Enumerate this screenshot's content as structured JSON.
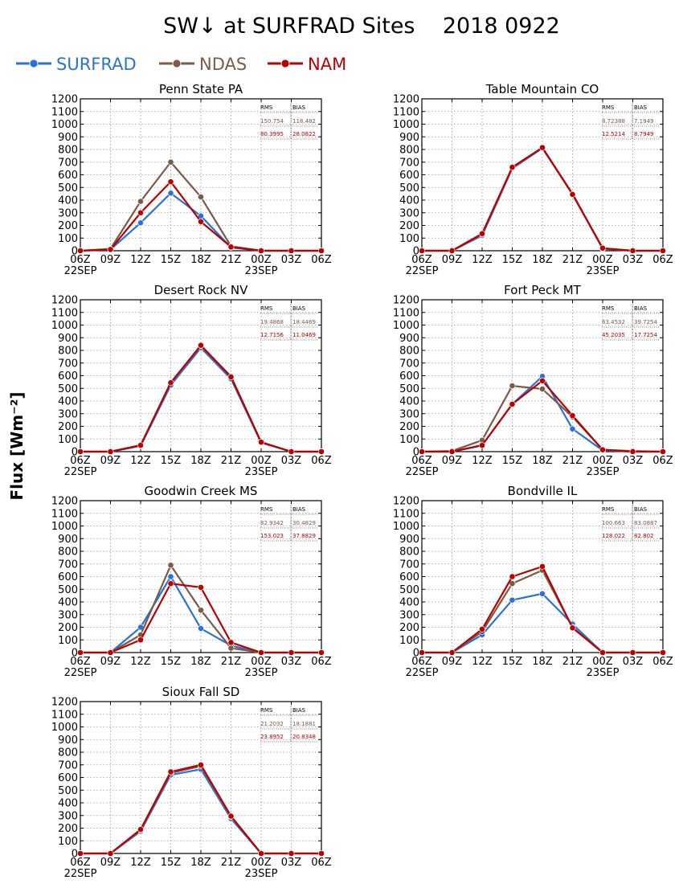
{
  "figure": {
    "title": "SW↓ at SURFRAD Sites    2018 0922",
    "ylabel": "Flux [Wm⁻²]"
  },
  "legend": [
    {
      "name": "SURFRAD",
      "color": "#2a72d8"
    },
    {
      "name": "NDAS",
      "color": "#7b5a48"
    },
    {
      "name": "NAM",
      "color": "#bb0000"
    }
  ],
  "stats_header": {
    "rms": "RMS",
    "bias": "BIAS"
  },
  "chart_data": [
    {
      "type": "line",
      "title": "Penn State PA",
      "x": [
        "06Z",
        "09Z",
        "12Z",
        "15Z",
        "18Z",
        "21Z",
        "00Z",
        "03Z",
        "06Z"
      ],
      "x_date_labels": [
        "22SEP",
        "23SEP"
      ],
      "ylim": [
        0,
        1200
      ],
      "yticks": [
        0,
        100,
        200,
        300,
        400,
        500,
        600,
        700,
        800,
        900,
        1000,
        1100,
        1200
      ],
      "grid": true,
      "stats": {
        "ndas": {
          "rms": "150.754",
          "bias": "118.482"
        },
        "nam": {
          "rms": "80.3995",
          "bias": "28.0822"
        }
      },
      "series": [
        {
          "name": "SURFRAD",
          "values": [
            0,
            10,
            220,
            455,
            275,
            25,
            0,
            0,
            0
          ]
        },
        {
          "name": "NDAS",
          "values": [
            0,
            15,
            390,
            700,
            425,
            35,
            0,
            0,
            0
          ]
        },
        {
          "name": "NAM",
          "values": [
            0,
            10,
            300,
            545,
            230,
            30,
            0,
            0,
            0
          ]
        }
      ]
    },
    {
      "type": "line",
      "title": "Table Mountain CO",
      "x": [
        "06Z",
        "09Z",
        "12Z",
        "15Z",
        "18Z",
        "21Z",
        "00Z",
        "03Z",
        "06Z"
      ],
      "x_date_labels": [
        "22SEP",
        "23SEP"
      ],
      "ylim": [
        0,
        1200
      ],
      "yticks": [
        0,
        100,
        200,
        300,
        400,
        500,
        600,
        700,
        800,
        900,
        1000,
        1100,
        1200
      ],
      "grid": true,
      "stats": {
        "ndas": {
          "rms": "8.72388",
          "bias": "7.1949"
        },
        "nam": {
          "rms": "12.5214",
          "bias": "8.7949"
        }
      },
      "series": [
        {
          "name": "SURFRAD",
          "values": [
            0,
            0,
            120,
            650,
            810,
            450,
            15,
            0,
            0
          ]
        },
        {
          "name": "NDAS",
          "values": [
            0,
            0,
            130,
            655,
            815,
            450,
            20,
            0,
            0
          ]
        },
        {
          "name": "NAM",
          "values": [
            0,
            0,
            135,
            660,
            815,
            445,
            20,
            0,
            0
          ]
        }
      ]
    },
    {
      "type": "line",
      "title": "Desert Rock NV",
      "x": [
        "06Z",
        "09Z",
        "12Z",
        "15Z",
        "18Z",
        "21Z",
        "00Z",
        "03Z",
        "06Z"
      ],
      "x_date_labels": [
        "22SEP",
        "23SEP"
      ],
      "ylim": [
        0,
        1200
      ],
      "yticks": [
        0,
        100,
        200,
        300,
        400,
        500,
        600,
        700,
        800,
        900,
        1000,
        1100,
        1200
      ],
      "grid": true,
      "stats": {
        "ndas": {
          "rms": "19.4868",
          "bias": "18.4469"
        },
        "nam": {
          "rms": "12.7156",
          "bias": "11.0469"
        }
      },
      "series": [
        {
          "name": "SURFRAD",
          "values": [
            0,
            0,
            45,
            525,
            820,
            575,
            70,
            0,
            0
          ]
        },
        {
          "name": "NDAS",
          "values": [
            0,
            0,
            50,
            545,
            835,
            595,
            75,
            0,
            0
          ]
        },
        {
          "name": "NAM",
          "values": [
            0,
            0,
            50,
            545,
            840,
            590,
            75,
            0,
            0
          ]
        }
      ]
    },
    {
      "type": "line",
      "title": "Fort Peck MT",
      "x": [
        "06Z",
        "09Z",
        "12Z",
        "15Z",
        "18Z",
        "21Z",
        "00Z",
        "03Z",
        "06Z"
      ],
      "x_date_labels": [
        "22SEP",
        "23SEP"
      ],
      "ylim": [
        0,
        1200
      ],
      "yticks": [
        0,
        100,
        200,
        300,
        400,
        500,
        600,
        700,
        800,
        900,
        1000,
        1100,
        1200
      ],
      "grid": true,
      "stats": {
        "ndas": {
          "rms": "63.4532",
          "bias": "39.7254"
        },
        "nam": {
          "rms": "45.2035",
          "bias": "17.7254"
        }
      },
      "series": [
        {
          "name": "SURFRAD",
          "values": [
            0,
            0,
            50,
            375,
            595,
            180,
            10,
            0,
            0
          ]
        },
        {
          "name": "NDAS",
          "values": [
            0,
            5,
            90,
            520,
            495,
            275,
            15,
            5,
            0
          ]
        },
        {
          "name": "NAM",
          "values": [
            0,
            0,
            50,
            375,
            560,
            285,
            15,
            0,
            0
          ]
        }
      ]
    },
    {
      "type": "line",
      "title": "Goodwin Creek MS",
      "x": [
        "06Z",
        "09Z",
        "12Z",
        "15Z",
        "18Z",
        "21Z",
        "00Z",
        "03Z",
        "06Z"
      ],
      "x_date_labels": [
        "22SEP",
        "23SEP"
      ],
      "ylim": [
        0,
        1200
      ],
      "yticks": [
        0,
        100,
        200,
        300,
        400,
        500,
        600,
        700,
        800,
        900,
        1000,
        1100,
        1200
      ],
      "grid": true,
      "stats": {
        "ndas": {
          "rms": "82.9342",
          "bias": "30.4829"
        },
        "nam": {
          "rms": "153.023",
          "bias": "37.8829"
        }
      },
      "series": [
        {
          "name": "SURFRAD",
          "values": [
            0,
            0,
            200,
            600,
            190,
            55,
            0,
            0,
            0
          ]
        },
        {
          "name": "NDAS",
          "values": [
            0,
            0,
            140,
            690,
            335,
            35,
            0,
            0,
            0
          ]
        },
        {
          "name": "NAM",
          "values": [
            0,
            0,
            100,
            545,
            515,
            80,
            0,
            0,
            0
          ]
        }
      ]
    },
    {
      "type": "line",
      "title": "Bondville IL",
      "x": [
        "06Z",
        "09Z",
        "12Z",
        "15Z",
        "18Z",
        "21Z",
        "00Z",
        "03Z",
        "06Z"
      ],
      "x_date_labels": [
        "22SEP",
        "23SEP"
      ],
      "ylim": [
        0,
        1200
      ],
      "yticks": [
        0,
        100,
        200,
        300,
        400,
        500,
        600,
        700,
        800,
        900,
        1000,
        1100,
        1200
      ],
      "grid": true,
      "stats": {
        "ndas": {
          "rms": "100.663",
          "bias": "83.0887"
        },
        "nam": {
          "rms": "128.022",
          "bias": "82.802"
        }
      },
      "series": [
        {
          "name": "SURFRAD",
          "values": [
            0,
            0,
            140,
            415,
            465,
            225,
            0,
            0,
            0
          ]
        },
        {
          "name": "NDAS",
          "values": [
            0,
            0,
            165,
            545,
            650,
            200,
            0,
            0,
            0
          ]
        },
        {
          "name": "NAM",
          "values": [
            0,
            0,
            185,
            600,
            680,
            195,
            0,
            0,
            0
          ]
        }
      ]
    },
    {
      "type": "line",
      "title": "Sioux Fall SD",
      "x": [
        "06Z",
        "09Z",
        "12Z",
        "15Z",
        "18Z",
        "21Z",
        "00Z",
        "03Z",
        "06Z"
      ],
      "x_date_labels": [
        "22SEP",
        "23SEP"
      ],
      "ylim": [
        0,
        1200
      ],
      "yticks": [
        0,
        100,
        200,
        300,
        400,
        500,
        600,
        700,
        800,
        900,
        1000,
        1100,
        1200
      ],
      "grid": true,
      "stats": {
        "ndas": {
          "rms": "21.2032",
          "bias": "18.1881"
        },
        "nam": {
          "rms": "23.8952",
          "bias": "20.8348"
        }
      },
      "series": [
        {
          "name": "SURFRAD",
          "values": [
            0,
            0,
            175,
            620,
            665,
            275,
            0,
            0,
            0
          ]
        },
        {
          "name": "NDAS",
          "values": [
            0,
            0,
            185,
            635,
            690,
            290,
            0,
            0,
            0
          ]
        },
        {
          "name": "NAM",
          "values": [
            0,
            0,
            190,
            645,
            700,
            295,
            0,
            0,
            0
          ]
        }
      ]
    }
  ]
}
